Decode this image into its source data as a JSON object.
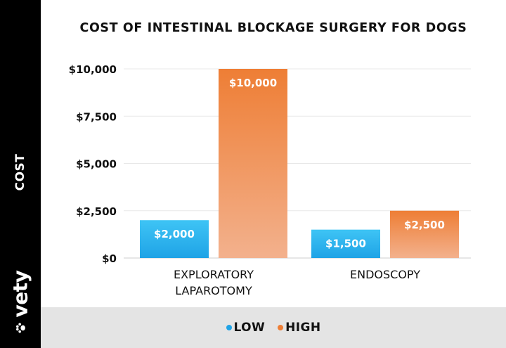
{
  "brand": {
    "name": "vety",
    "icon": "paw-icon"
  },
  "colors": {
    "sidebar": "#000000",
    "low_top": "#3ec4f5",
    "low_bottom": "#1fa3e6",
    "high_top": "#ee7e35",
    "high_bottom": "#f3b18d",
    "legend_band": "#e4e4e4"
  },
  "chart_data": {
    "type": "bar",
    "title": "COST OF INTESTINAL BLOCKAGE SURGERY FOR DOGS",
    "ylabel": "COST",
    "xlabel": "",
    "categories": [
      [
        "EXPLORATORY",
        "LAPAROTOMY"
      ],
      [
        "ENDOSCOPY"
      ]
    ],
    "series": [
      {
        "name": "LOW",
        "values": [
          2000,
          1500
        ],
        "labels": [
          "$2,000",
          "$1,500"
        ]
      },
      {
        "name": "HIGH",
        "values": [
          10000,
          2500
        ],
        "labels": [
          "$10,000",
          "$2,500"
        ]
      }
    ],
    "ylim": [
      0,
      10000
    ],
    "yticks": [
      0,
      2500,
      5000,
      7500,
      10000
    ],
    "ytick_labels": [
      "$0",
      "$2,500",
      "$5,000",
      "$7,500",
      "$10,000"
    ],
    "grid": true,
    "legend_position": "bottom"
  }
}
